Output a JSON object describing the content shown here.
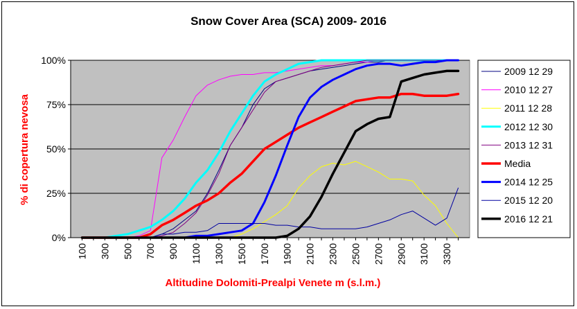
{
  "chart_data": {
    "type": "line",
    "title": "Snow Cover Area (SCA)  2009- 2016",
    "xlabel": "Altitudine Dolomiti-Prealpi Venete m (s.l.m.)",
    "ylabel": "% di copertura nevosa",
    "x": [
      100,
      200,
      300,
      400,
      500,
      600,
      700,
      800,
      900,
      1000,
      1100,
      1200,
      1300,
      1400,
      1500,
      1600,
      1700,
      1800,
      1900,
      2000,
      2100,
      2200,
      2300,
      2400,
      2500,
      2600,
      2700,
      2800,
      2900,
      3000,
      3100,
      3200,
      3300,
      3400
    ],
    "xtick_labels": [
      "100",
      "300",
      "500",
      "700",
      "900",
      "1100",
      "1300",
      "1500",
      "1700",
      "1900",
      "2100",
      "2300",
      "2500",
      "2700",
      "2900",
      "3100",
      "3300"
    ],
    "ylim": [
      0,
      100
    ],
    "ytick_labels": [
      "0%",
      "25%",
      "50%",
      "75%",
      "100%"
    ],
    "grid": "horizontal",
    "legend_position": "right",
    "series": [
      {
        "name": "2009 12 29",
        "color": "#000080",
        "width": 1,
        "values": [
          0,
          0,
          0,
          0,
          0,
          0,
          0,
          2,
          5,
          10,
          15,
          25,
          38,
          52,
          62,
          75,
          84,
          88,
          90,
          92,
          94,
          95,
          96,
          97,
          98,
          99,
          99,
          100,
          100,
          100,
          100,
          100,
          100,
          100
        ]
      },
      {
        "name": "2010 12 27",
        "color": "#ff00ff",
        "width": 1,
        "values": [
          0,
          0,
          0,
          0,
          0,
          1,
          4,
          45,
          55,
          68,
          80,
          86,
          89,
          91,
          92,
          92,
          93,
          93,
          94,
          95,
          96,
          97,
          97,
          98,
          99,
          99,
          100,
          100,
          100,
          100,
          100,
          100,
          100,
          100
        ]
      },
      {
        "name": "2011 12 28",
        "color": "#ffff00",
        "width": 1,
        "values": [
          0,
          0,
          0,
          0,
          0,
          0,
          0,
          0,
          0,
          0,
          0,
          0,
          0,
          0,
          2,
          5,
          9,
          13,
          18,
          28,
          35,
          40,
          42,
          41,
          43,
          40,
          37,
          33,
          33,
          32,
          24,
          18,
          8,
          0
        ]
      },
      {
        "name": "2012 12 30",
        "color": "#00ffff",
        "width": 3,
        "values": [
          0,
          0,
          0,
          1,
          2,
          4,
          6,
          10,
          15,
          22,
          31,
          38,
          48,
          60,
          70,
          80,
          88,
          92,
          95,
          98,
          99,
          100,
          100,
          100,
          100,
          100,
          100,
          100,
          100,
          100,
          100,
          100,
          100,
          100
        ]
      },
      {
        "name": "2013 12 31",
        "color": "#800080",
        "width": 1,
        "values": [
          0,
          0,
          0,
          0,
          0,
          0,
          0,
          1,
          3,
          8,
          14,
          24,
          36,
          52,
          62,
          72,
          82,
          88,
          90,
          92,
          94,
          96,
          97,
          98,
          99,
          100,
          100,
          100,
          100,
          100,
          100,
          100,
          100,
          100
        ]
      },
      {
        "name": "Media",
        "color": "#ff0000",
        "width": 3.5,
        "values": [
          0,
          0,
          0,
          0,
          0,
          0,
          2,
          7,
          10,
          14,
          18,
          21,
          25,
          31,
          36,
          43,
          50,
          54,
          58,
          62,
          65,
          68,
          71,
          74,
          77,
          78,
          79,
          79,
          81,
          81,
          80,
          80,
          80,
          81
        ]
      },
      {
        "name": "2014 12 25",
        "color": "#0000ff",
        "width": 3,
        "values": [
          0,
          0,
          0,
          0,
          0,
          0,
          0,
          0,
          0,
          0,
          1,
          1,
          2,
          3,
          4,
          8,
          20,
          35,
          52,
          68,
          79,
          85,
          89,
          92,
          95,
          97,
          98,
          98,
          97,
          98,
          99,
          99,
          100,
          100
        ]
      },
      {
        "name": "2015 12 20",
        "color": "#0000a0",
        "width": 1,
        "values": [
          0,
          0,
          0,
          0,
          0,
          0,
          0,
          2,
          2,
          3,
          3,
          4,
          8,
          8,
          8,
          8,
          8,
          7,
          7,
          6,
          6,
          5,
          5,
          5,
          5,
          6,
          8,
          10,
          13,
          15,
          11,
          7,
          11,
          28
        ]
      },
      {
        "name": "2016 12 21",
        "color": "#000000",
        "width": 3.5,
        "values": [
          0,
          0,
          0,
          0,
          0,
          0,
          0,
          0,
          0,
          0,
          0,
          0,
          0,
          0,
          0,
          0,
          0,
          0,
          1,
          5,
          12,
          23,
          36,
          48,
          60,
          64,
          67,
          68,
          88,
          90,
          92,
          93,
          94,
          94
        ]
      }
    ]
  }
}
